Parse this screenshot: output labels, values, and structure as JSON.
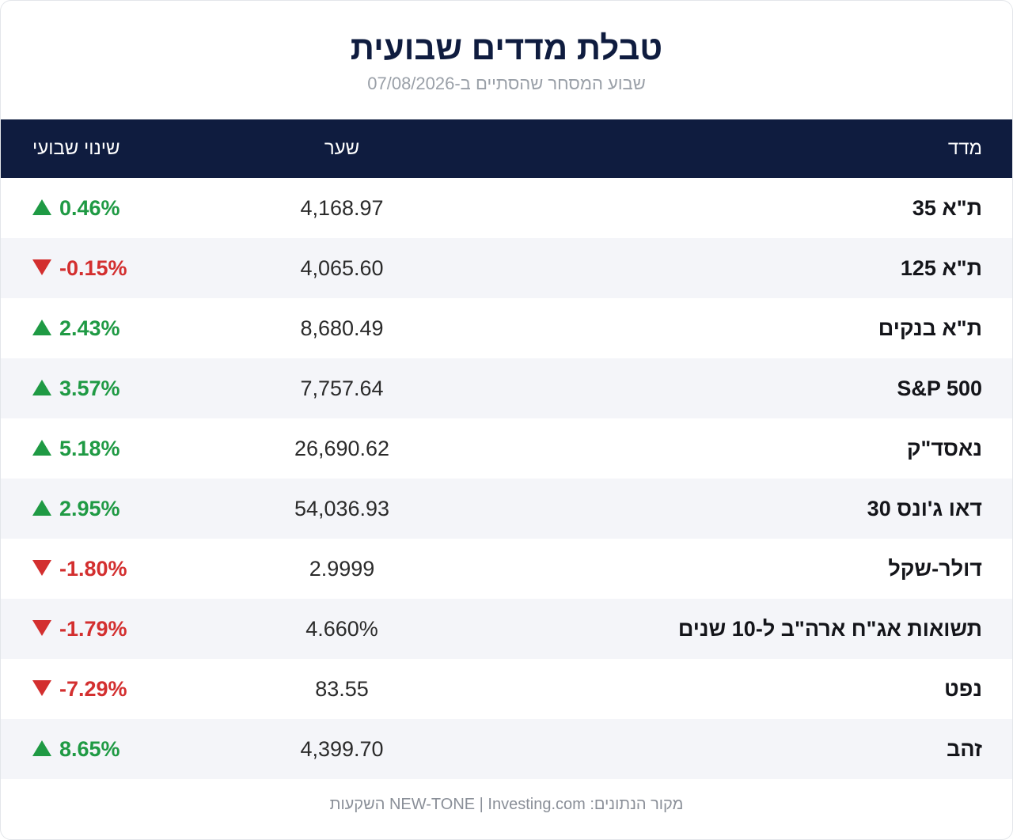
{
  "header": {
    "title": "טבלת מדדים שבועית",
    "subtitle": "שבוע המסחר שהסתיים ב-07/08/2026"
  },
  "table": {
    "columns": {
      "name": "מדד",
      "rate": "שער",
      "change": "שינוי שבועי"
    },
    "rows": [
      {
        "name": "ת\"א 35",
        "rate": "4,168.97",
        "change": "0.46%",
        "direction": "up"
      },
      {
        "name": "ת\"א 125",
        "rate": "4,065.60",
        "change": "-0.15%",
        "direction": "down"
      },
      {
        "name": "ת\"א בנקים",
        "rate": "8,680.49",
        "change": "2.43%",
        "direction": "up"
      },
      {
        "name": "S&P 500",
        "rate": "7,757.64",
        "change": "3.57%",
        "direction": "up"
      },
      {
        "name": "נאסד\"ק",
        "rate": "26,690.62",
        "change": "5.18%",
        "direction": "up"
      },
      {
        "name": "דאו ג'ונס 30",
        "rate": "54,036.93",
        "change": "2.95%",
        "direction": "up"
      },
      {
        "name": "דולר-שקל",
        "rate": "2.9999",
        "change": "-1.80%",
        "direction": "down"
      },
      {
        "name": "תשואות אג\"ח ארה\"ב ל-10 שנים",
        "rate": "4.660%",
        "change": "-1.79%",
        "direction": "down"
      },
      {
        "name": "נפט",
        "rate": "83.55",
        "change": "-7.29%",
        "direction": "down"
      },
      {
        "name": "זהב",
        "rate": "4,399.70",
        "change": "8.65%",
        "direction": "up"
      }
    ]
  },
  "footer": {
    "source": "מקור הנתונים: NEW-TONE | Investing.com השקעות"
  },
  "colors": {
    "header_bg": "#0f1c3f",
    "positive": "#1f9a44",
    "negative": "#d32f2f",
    "stripe": "#f4f5f9"
  },
  "icons": {
    "up": "triangle-up-icon",
    "down": "triangle-down-icon"
  }
}
